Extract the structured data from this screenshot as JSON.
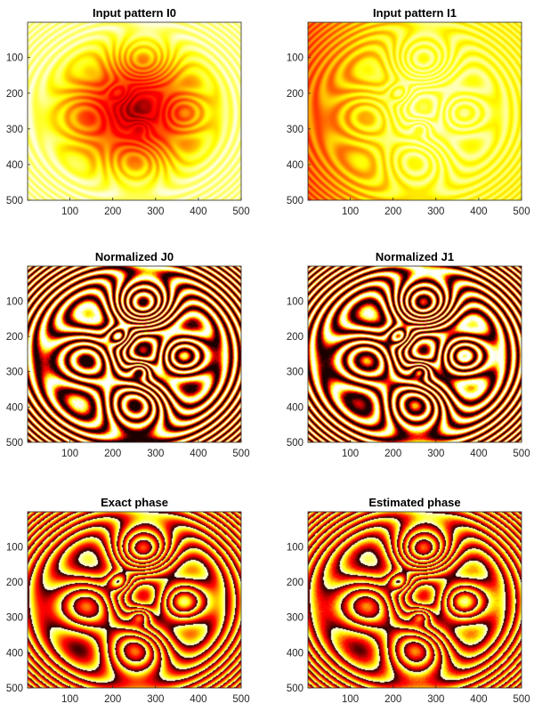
{
  "chart_data": [
    {
      "type": "heatmap",
      "title": "Input pattern I0",
      "colormap": "hot",
      "pattern": "intensity_dark_center",
      "xlim": [
        1,
        500
      ],
      "ylim": [
        1,
        500
      ],
      "xticks": [
        100,
        200,
        300,
        400,
        500
      ],
      "yticks": [
        100,
        200,
        300,
        400,
        500
      ],
      "y_reversed": true,
      "grid": false
    },
    {
      "type": "heatmap",
      "title": "Input pattern I1",
      "colormap": "hot",
      "pattern": "intensity_bright",
      "xlim": [
        1,
        500
      ],
      "ylim": [
        1,
        500
      ],
      "xticks": [
        100,
        200,
        300,
        400,
        500
      ],
      "yticks": [
        100,
        200,
        300,
        400,
        500
      ],
      "y_reversed": true,
      "grid": false
    },
    {
      "type": "heatmap",
      "title": "Normalized J0",
      "colormap": "hot",
      "pattern": "normalized_fringes",
      "xlim": [
        1,
        500
      ],
      "ylim": [
        1,
        500
      ],
      "xticks": [
        100,
        200,
        300,
        400,
        500
      ],
      "yticks": [
        100,
        200,
        300,
        400,
        500
      ],
      "y_reversed": true,
      "grid": false
    },
    {
      "type": "heatmap",
      "title": "Normalized J1",
      "colormap": "hot",
      "pattern": "normalized_fringes_shifted",
      "xlim": [
        1,
        500
      ],
      "ylim": [
        1,
        500
      ],
      "xticks": [
        100,
        200,
        300,
        400,
        500
      ],
      "yticks": [
        100,
        200,
        300,
        400,
        500
      ],
      "y_reversed": true,
      "grid": false
    },
    {
      "type": "heatmap",
      "title": "Exact phase",
      "colormap": "hot",
      "pattern": "wrapped_phase",
      "xlim": [
        1,
        500
      ],
      "ylim": [
        1,
        500
      ],
      "xticks": [
        100,
        200,
        300,
        400,
        500
      ],
      "yticks": [
        100,
        200,
        300,
        400,
        500
      ],
      "y_reversed": true,
      "grid": false
    },
    {
      "type": "heatmap",
      "title": "Estimated phase",
      "colormap": "hot",
      "pattern": "wrapped_phase_noisy",
      "xlim": [
        1,
        500
      ],
      "ylim": [
        1,
        500
      ],
      "xticks": [
        100,
        200,
        300,
        400,
        500
      ],
      "yticks": [
        100,
        200,
        300,
        400,
        500
      ],
      "y_reversed": true,
      "grid": false
    }
  ]
}
